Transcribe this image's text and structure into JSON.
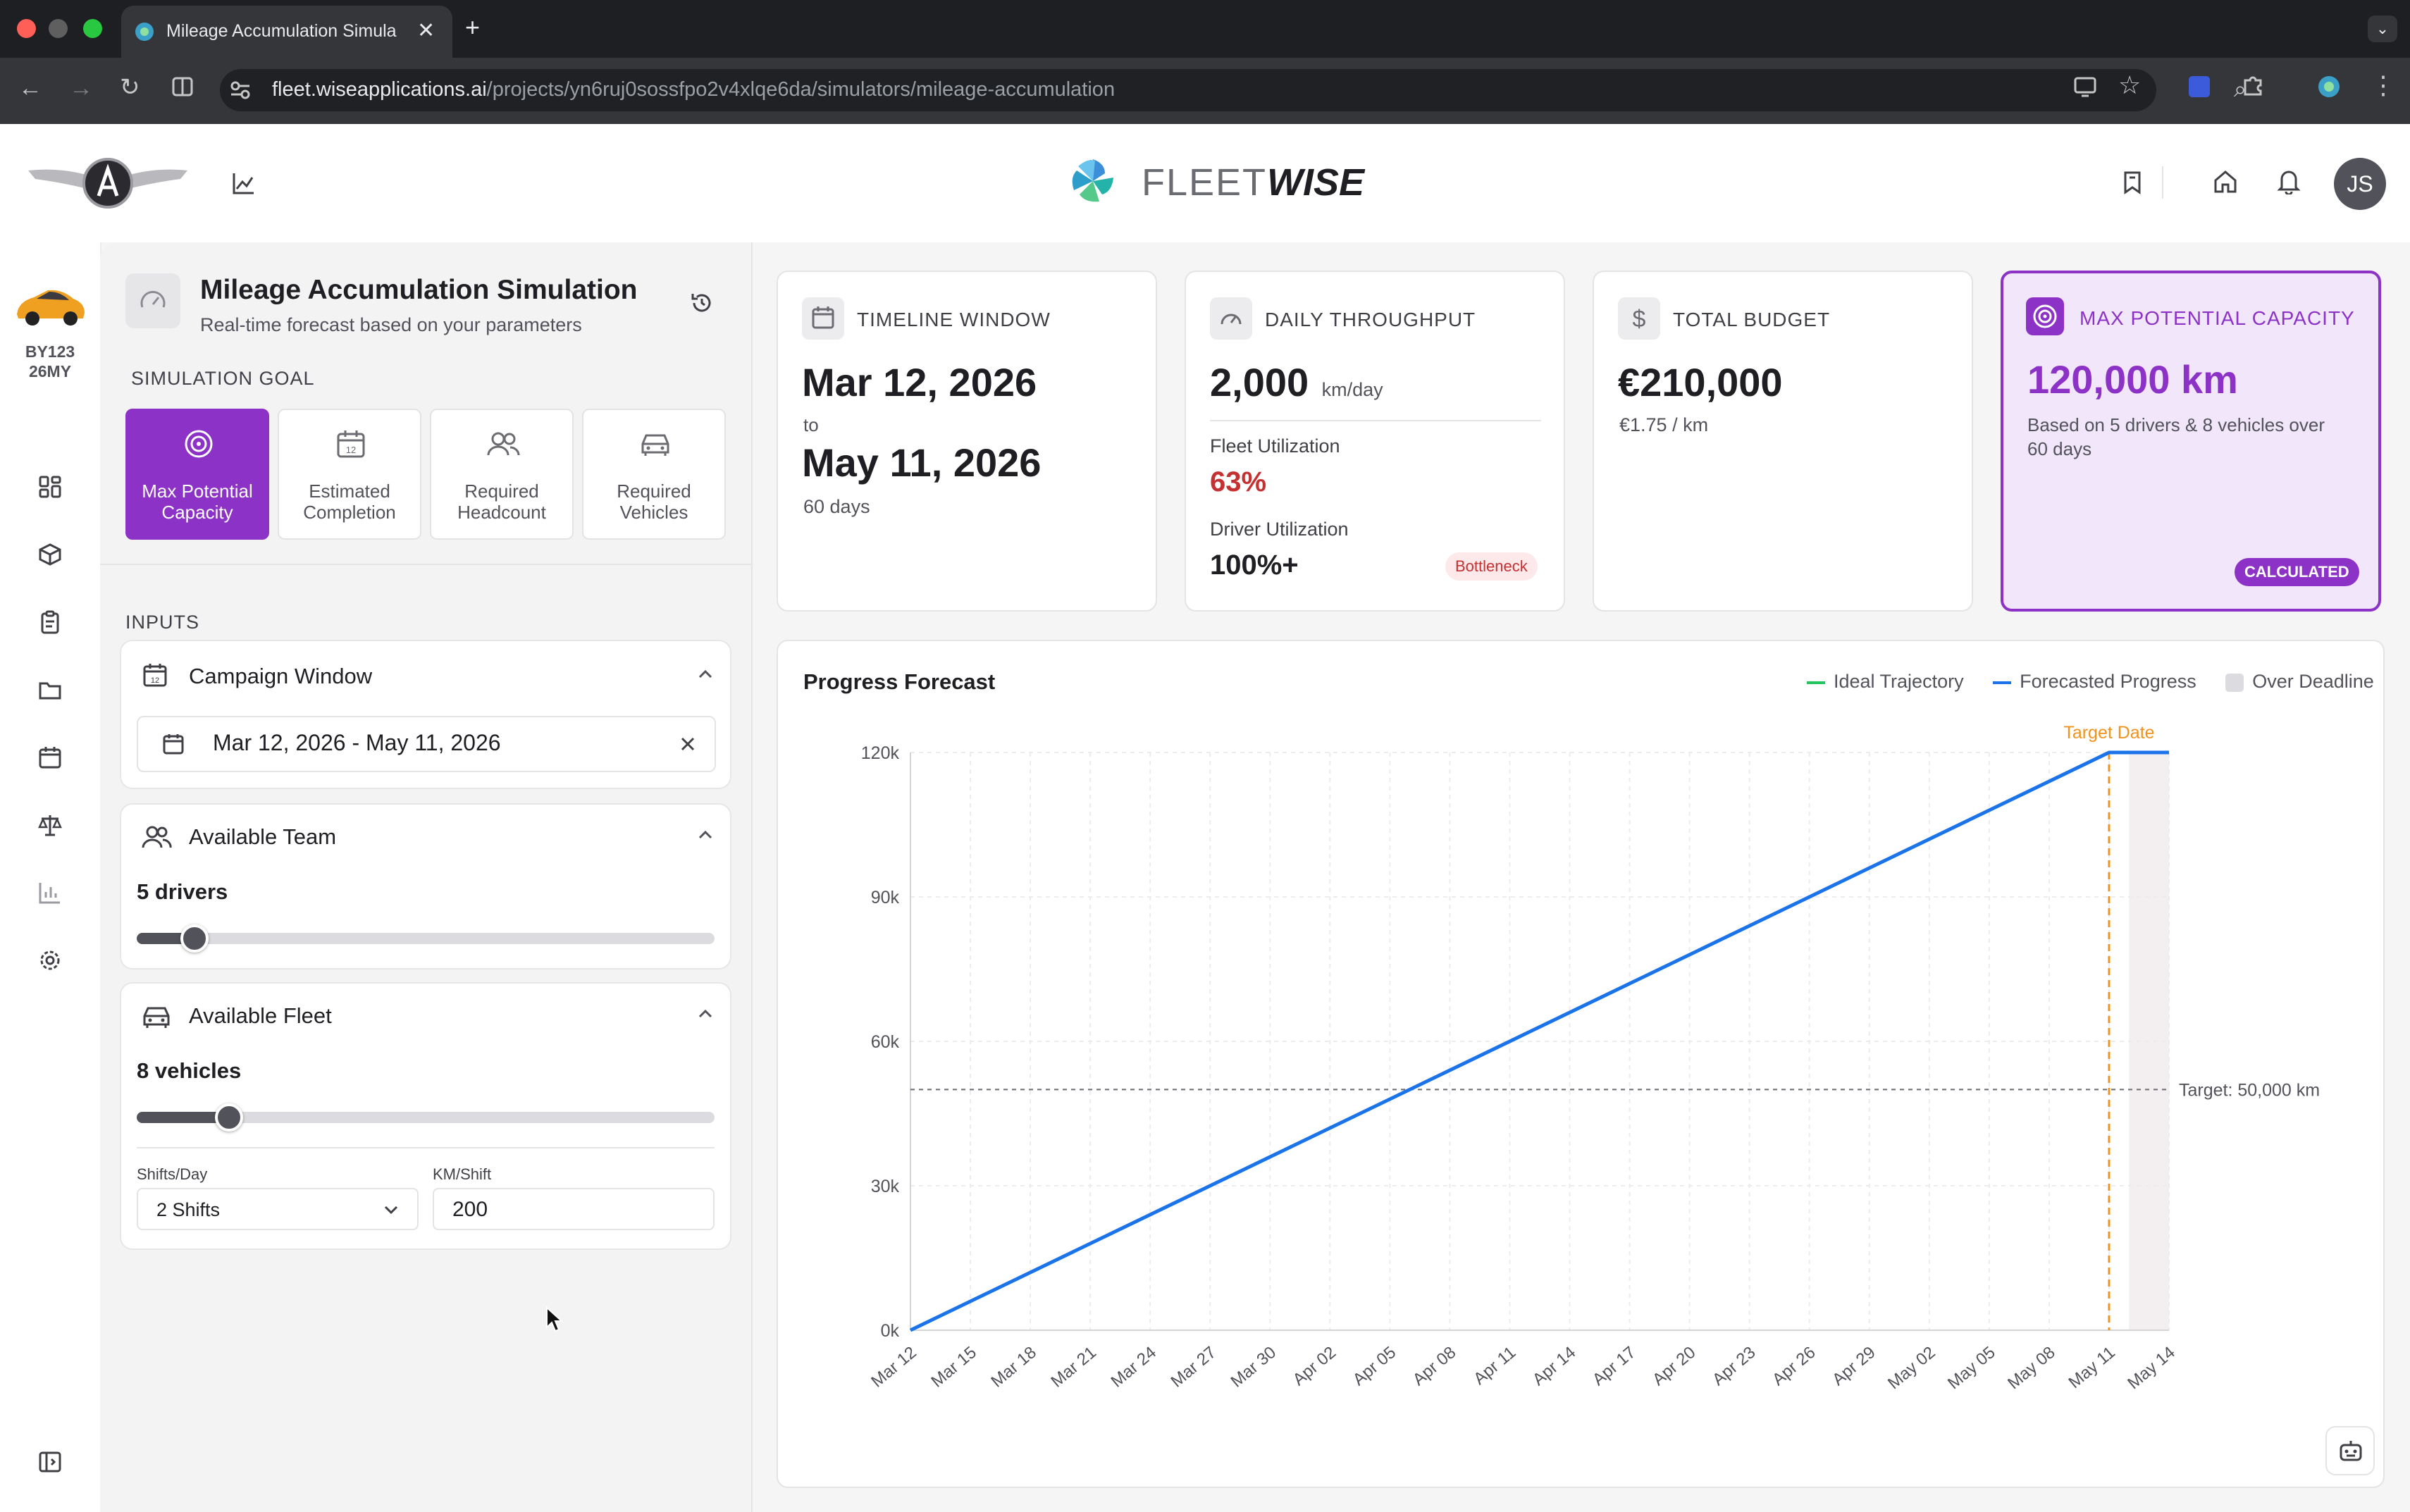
{
  "browser": {
    "tab_title": "Mileage Accumulation Simula",
    "url_host": "fleet.wiseapplications.ai",
    "url_path": "/projects/yn6ruj0sossfpo2v4xlqe6da/simulators/mileage-accumulation"
  },
  "header": {
    "brand_light": "FLEET",
    "brand_bold": "WISE",
    "avatar_initials": "JS"
  },
  "rail": {
    "vehicle_line1": "BY123",
    "vehicle_line2": "26MY"
  },
  "panel": {
    "title": "Mileage Accumulation Simulation",
    "subtitle": "Real-time forecast based on your parameters",
    "goal_heading": "SIMULATION GOAL",
    "goals": [
      {
        "line1": "Max Potential",
        "line2": "Capacity",
        "active": true
      },
      {
        "line1": "Estimated",
        "line2": "Completion",
        "active": false
      },
      {
        "line1": "Required",
        "line2": "Headcount",
        "active": false
      },
      {
        "line1": "Required",
        "line2": "Vehicles",
        "active": false
      }
    ],
    "inputs_heading": "INPUTS",
    "campaign": {
      "title": "Campaign Window",
      "date_range": "Mar 12, 2026 - May 11, 2026"
    },
    "team": {
      "title": "Available Team",
      "value_label": "5 drivers",
      "slider_fraction": 0.1
    },
    "fleet": {
      "title": "Available Fleet",
      "value_label": "8 vehicles",
      "slider_fraction": 0.16,
      "shifts_label": "Shifts/Day",
      "shifts_value": "2 Shifts",
      "km_label": "KM/Shift",
      "km_value": "200"
    }
  },
  "metrics": {
    "timeline": {
      "heading": "TIMELINE WINDOW",
      "start": "Mar 12, 2026",
      "to": "to",
      "end": "May 11, 2026",
      "days": "60 days"
    },
    "throughput": {
      "heading": "DAILY THROUGHPUT",
      "value": "2,000",
      "unit": "km/day",
      "fleet_util_label": "Fleet Utilization",
      "fleet_util_value": "63%",
      "driver_util_label": "Driver Utilization",
      "driver_util_value": "100%+",
      "badge": "Bottleneck"
    },
    "budget": {
      "heading": "TOTAL BUDGET",
      "value": "€210,000",
      "rate": "€1.75 / km"
    },
    "capacity": {
      "heading": "MAX POTENTIAL CAPACITY",
      "value": "120,000 km",
      "desc_line1": "Based on 5 drivers & 8 vehicles over",
      "desc_line2": "60 days",
      "badge": "CALCULATED"
    }
  },
  "chart_data": {
    "type": "line",
    "title": "Progress Forecast",
    "legend": [
      "Ideal Trajectory",
      "Forecasted Progress",
      "Over Deadline"
    ],
    "legend_position": "top-right",
    "x_tick_labels": [
      "Mar 12",
      "Mar 15",
      "Mar 18",
      "Mar 21",
      "Mar 24",
      "Mar 27",
      "Mar 30",
      "Apr 02",
      "Apr 05",
      "Apr 08",
      "Apr 11",
      "Apr 14",
      "Apr 17",
      "Apr 20",
      "Apr 23",
      "Apr 26",
      "Apr 29",
      "May 02",
      "May 05",
      "May 08",
      "May 11",
      "May 14"
    ],
    "x_range": [
      "2026-03-12",
      "2026-05-14"
    ],
    "y_tick_labels": [
      "0k",
      "30k",
      "60k",
      "90k",
      "120k"
    ],
    "ylim": [
      0,
      120000
    ],
    "grid": true,
    "series": [
      {
        "name": "Forecasted Progress",
        "color": "#1a73e8",
        "points": [
          [
            "2026-03-12",
            0
          ],
          [
            "2026-05-11",
            120000
          ],
          [
            "2026-05-14",
            120000
          ]
        ]
      }
    ],
    "target_line": {
      "value": 50000,
      "label": "Target: 50,000 km"
    },
    "target_date": {
      "date": "2026-05-11",
      "label": "Target Date",
      "color": "#f0931e"
    },
    "over_deadline": {
      "start": "2026-05-12",
      "end": "2026-05-14"
    }
  }
}
